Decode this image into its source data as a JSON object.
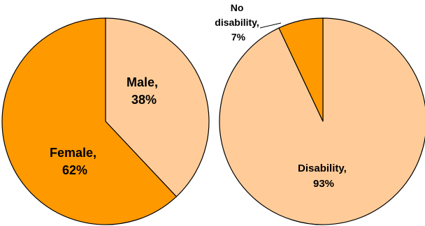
{
  "chart_data": [
    {
      "type": "pie",
      "title": "",
      "slices": [
        {
          "label_line1": "Male,",
          "label_line2": "38%",
          "value": 38,
          "color": "#ffcc99"
        },
        {
          "label_line1": "Female,",
          "label_line2": "62%",
          "value": 62,
          "color": "#ff9900"
        }
      ]
    },
    {
      "type": "pie",
      "title": "",
      "slices": [
        {
          "label_line1": "Disability,",
          "label_line2": "93%",
          "value": 93,
          "color": "#ffcc99"
        },
        {
          "label_line0": "No",
          "label_line1": "disability,",
          "label_line2": "7%",
          "value": 7,
          "color": "#ff9900"
        }
      ]
    }
  ]
}
